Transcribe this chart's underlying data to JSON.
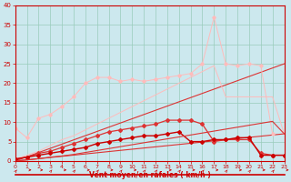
{
  "x": [
    0,
    1,
    2,
    3,
    4,
    5,
    6,
    7,
    8,
    9,
    10,
    11,
    12,
    13,
    14,
    15,
    16,
    17,
    18,
    19,
    20,
    21,
    22,
    23
  ],
  "line_upper_light": [
    8.5,
    6.0,
    11.0,
    12.0,
    14.0,
    16.5,
    20.0,
    21.5,
    21.5,
    20.5,
    21.0,
    20.5,
    21.0,
    21.5,
    22.0,
    22.5,
    25.0,
    37.0,
    25.0,
    24.5,
    25.0,
    24.5,
    7.0,
    null
  ],
  "line_upper2_light": [
    0.5,
    1.5,
    2.5,
    4.0,
    5.5,
    6.5,
    8.0,
    9.5,
    11.0,
    12.5,
    14.0,
    15.5,
    17.0,
    18.5,
    20.0,
    21.5,
    23.0,
    24.5,
    16.5,
    16.5,
    16.5,
    16.5,
    16.5,
    7.0
  ],
  "line_mid1": [
    0.5,
    1.0,
    2.0,
    2.5,
    3.5,
    4.5,
    5.5,
    6.5,
    7.5,
    8.0,
    8.5,
    9.0,
    9.5,
    10.5,
    10.5,
    10.5,
    9.5,
    5.0,
    5.5,
    5.5,
    5.5,
    2.0,
    1.5,
    1.5
  ],
  "line_mid2": [
    0.5,
    1.0,
    1.5,
    2.0,
    2.5,
    3.0,
    3.5,
    4.5,
    5.0,
    5.5,
    6.0,
    6.5,
    6.5,
    7.0,
    7.5,
    5.0,
    5.0,
    5.5,
    5.5,
    6.0,
    6.0,
    1.5,
    1.5,
    1.5
  ],
  "line_fan_lower": [
    0.0,
    0.3,
    0.6,
    1.0,
    1.3,
    1.7,
    2.2,
    2.7,
    3.2,
    3.7,
    4.2,
    4.7,
    5.2,
    5.7,
    6.2,
    6.7,
    7.2,
    7.7,
    8.2,
    8.7,
    9.2,
    9.7,
    10.2,
    7.0
  ],
  "background_color": "#cce8ee",
  "grid_color": "#99ccbb",
  "line_dark": "#cc0000",
  "line_mid": "#dd3333",
  "line_light": "#ee9999",
  "line_vlight": "#ffbbbb",
  "xlabel": "Vent moyen/en rafales ( km/h )",
  "ylim": [
    0,
    40
  ],
  "xlim": [
    0,
    23
  ],
  "yticks": [
    0,
    5,
    10,
    15,
    20,
    25,
    30,
    35,
    40
  ],
  "xticks": [
    0,
    1,
    2,
    3,
    4,
    5,
    6,
    7,
    8,
    9,
    10,
    11,
    12,
    13,
    14,
    15,
    16,
    17,
    18,
    19,
    20,
    21,
    22,
    23
  ],
  "arrows_ne": [
    0,
    3,
    5,
    7,
    9,
    11,
    12,
    14,
    16,
    18,
    20,
    22
  ],
  "arrows_e": [
    1,
    2,
    4,
    6,
    8,
    10,
    13,
    15,
    17,
    19,
    21,
    23
  ]
}
